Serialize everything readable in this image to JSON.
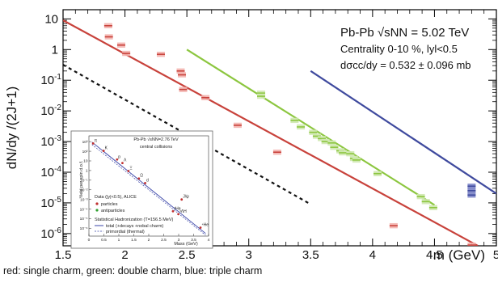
{
  "caption": "red: single charm, green: double charm, blue: triple charm",
  "chart_data": {
    "type": "scatter",
    "xlabel": "m (GeV)",
    "ylabel": "dN/dy /(2J+1)",
    "xlim": [
      1.5,
      5.0
    ],
    "ylim_log10": [
      -6.4,
      1.3
    ],
    "y_scale": "log",
    "x_ticks": [
      "1.5",
      "2",
      "2.5",
      "3",
      "3.5",
      "4",
      "4.5",
      "5"
    ],
    "y_ticks": [
      {
        "base": "10",
        "exp": ""
      },
      {
        "base": "1",
        "exp": ""
      },
      {
        "base": "10",
        "exp": "-1"
      },
      {
        "base": "10",
        "exp": "-2"
      },
      {
        "base": "10",
        "exp": "-3"
      },
      {
        "base": "10",
        "exp": "-4"
      },
      {
        "base": "10",
        "exp": "-5"
      },
      {
        "base": "10",
        "exp": "-6"
      }
    ],
    "annotation": {
      "line1": "Pb-Pb √sNN = 5.02 TeV",
      "line2": "Centrality 0-10 %, lyl<0.5",
      "line3": "dσcc/dy = 0.532 ± 0.096 mb"
    },
    "lines": [
      {
        "color": "#c8423b",
        "from": [
          1.5,
          9.0
        ],
        "to": [
          4.85,
          4e-07
        ]
      },
      {
        "color": "#8cc63f",
        "from": [
          2.5,
          1.0
        ],
        "to": [
          4.5,
          8.5e-06
        ]
      },
      {
        "color": "#3f4a9e",
        "from": [
          3.5,
          0.2
        ],
        "to": [
          5.0,
          2e-05
        ]
      },
      {
        "color": "#111111",
        "dashed": true,
        "from": [
          1.5,
          0.32
        ],
        "to": [
          3.5,
          9e-06
        ]
      }
    ],
    "series": [
      {
        "color": "#c8423b",
        "points": [
          [
            1.865,
            6.0
          ],
          [
            1.87,
            2.6
          ],
          [
            1.97,
            1.4
          ],
          [
            2.01,
            0.75
          ],
          [
            2.29,
            0.7
          ],
          [
            2.45,
            0.2
          ],
          [
            2.46,
            0.15
          ],
          [
            2.47,
            0.05
          ],
          [
            2.65,
            0.027
          ],
          [
            2.91,
            0.0034
          ],
          [
            3.23,
            0.00045
          ],
          [
            4.17,
            1.8e-06
          ],
          [
            4.8,
            4.2e-07
          ]
        ]
      },
      {
        "color": "#8cc63f",
        "points": [
          [
            3.1,
            0.038
          ],
          [
            3.1,
            0.03
          ],
          [
            3.37,
            0.0049
          ],
          [
            3.42,
            0.003
          ],
          [
            3.52,
            0.002
          ],
          [
            3.55,
            0.0015
          ],
          [
            3.59,
            0.00125
          ],
          [
            3.62,
            0.001
          ],
          [
            3.67,
            0.0009
          ],
          [
            3.69,
            0.00065
          ],
          [
            3.74,
            0.0005
          ],
          [
            3.76,
            0.00043
          ],
          [
            3.82,
            0.0004
          ],
          [
            3.85,
            0.00028
          ],
          [
            3.87,
            0.00025
          ],
          [
            4.04,
            9e-05
          ],
          [
            4.39,
            1.6e-05
          ],
          [
            4.43,
            1.1e-05
          ],
          [
            4.49,
            7e-06
          ]
        ]
      },
      {
        "color": "#3f4a9e",
        "points": [
          [
            4.8,
            3.5e-05
          ],
          [
            4.8,
            2.5e-05
          ],
          [
            4.8,
            1.8e-05
          ]
        ]
      }
    ],
    "inset": {
      "title_line1": "Pb-Pb √sNN=2.76 TeV",
      "title_line2": "central collisions",
      "ylabel": "Yield per spin d.o.f.",
      "xlabel": "Mass (GeV)",
      "xlim": [
        0,
        4
      ],
      "ylim_log10": [
        -6.8,
        3.6
      ],
      "x_ticks": [
        "0",
        "0.5",
        "1",
        "1.5",
        "2",
        "2.5",
        "3",
        "3.5",
        "4"
      ],
      "y_ticks": [
        "10³",
        "10²",
        "10",
        "1",
        "10⁻¹",
        "10⁻²",
        "10⁻³",
        "10⁻⁴",
        "10⁻⁵",
        "10⁻⁶"
      ],
      "legend": {
        "heading": "Data (|y|<0.5), ALICE",
        "particles": "particles",
        "antiparticles": "antiparticles",
        "model_heading": "Statistical Hadronization (T=156.5 MeV)",
        "total": "total (+decays +nobal charm)",
        "primordial": "primordial (thermal)"
      },
      "labels": [
        {
          "text": "π",
          "m": 0.14,
          "y": 650
        },
        {
          "text": "K",
          "m": 0.49,
          "y": 110
        },
        {
          "text": "p",
          "m": 0.94,
          "y": 14
        },
        {
          "text": "Λ",
          "m": 1.12,
          "y": 6
        },
        {
          "text": "Ξ",
          "m": 1.32,
          "y": 0.9
        },
        {
          "text": "Ω",
          "m": 1.67,
          "y": 0.15
        },
        {
          "text": "d",
          "m": 1.88,
          "y": 0.05
        },
        {
          "text": "J/ψ",
          "m": 3.1,
          "y": 0.001
        },
        {
          "text": "³He",
          "m": 2.81,
          "y": 6e-05
        },
        {
          "text": "³ΛH",
          "m": 2.99,
          "y": 3e-05
        },
        {
          "text": "⁴He",
          "m": 3.73,
          "y": 1.2e-06
        }
      ],
      "points": [
        [
          0.14,
          650
        ],
        [
          0.49,
          110
        ],
        [
          0.94,
          14
        ],
        [
          1.12,
          6
        ],
        [
          1.32,
          0.9
        ],
        [
          1.67,
          0.15
        ],
        [
          1.88,
          0.05
        ],
        [
          3.1,
          0.001
        ],
        [
          2.81,
          6e-05
        ],
        [
          2.99,
          3e-05
        ],
        [
          3.73,
          1.2e-06
        ]
      ]
    }
  }
}
